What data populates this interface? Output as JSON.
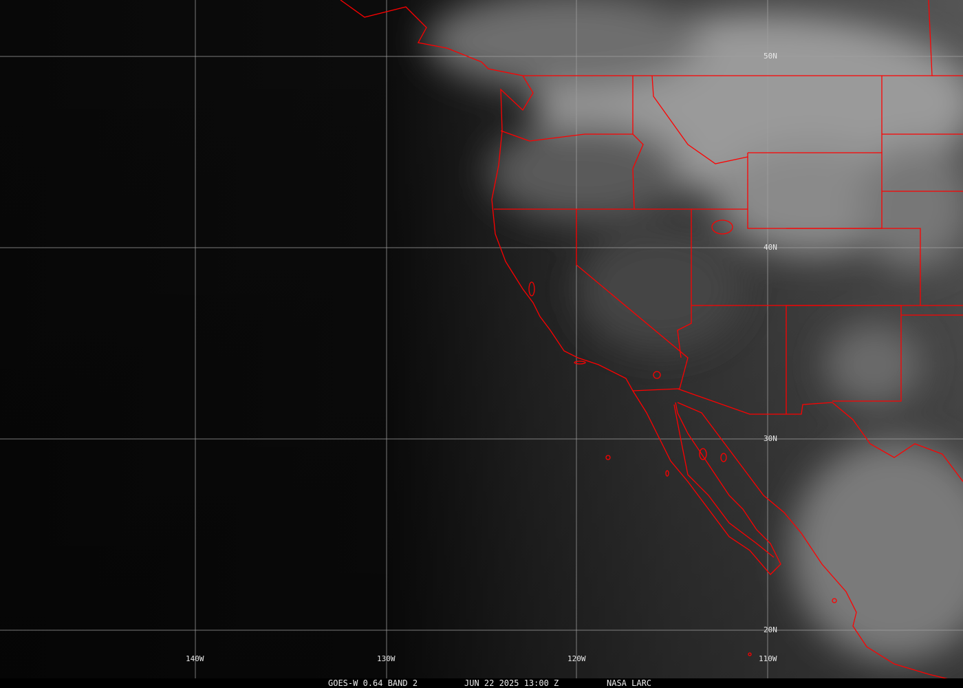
{
  "image": {
    "satellite": "GOES-W",
    "caption": {
      "product": "GOES-W 0.64 BAND 2",
      "datetime": "JUN 22 2025 13:00 Z",
      "source": "NASA LARC"
    },
    "longitude_labels": [
      "140W",
      "130W",
      "120W",
      "110W"
    ],
    "latitude_labels": [
      "50N",
      "40N",
      "30N",
      "20N"
    ],
    "colors": {
      "borders": "#ff0000",
      "grid": "#a0a0a0",
      "text": "#e8e8e8"
    }
  }
}
